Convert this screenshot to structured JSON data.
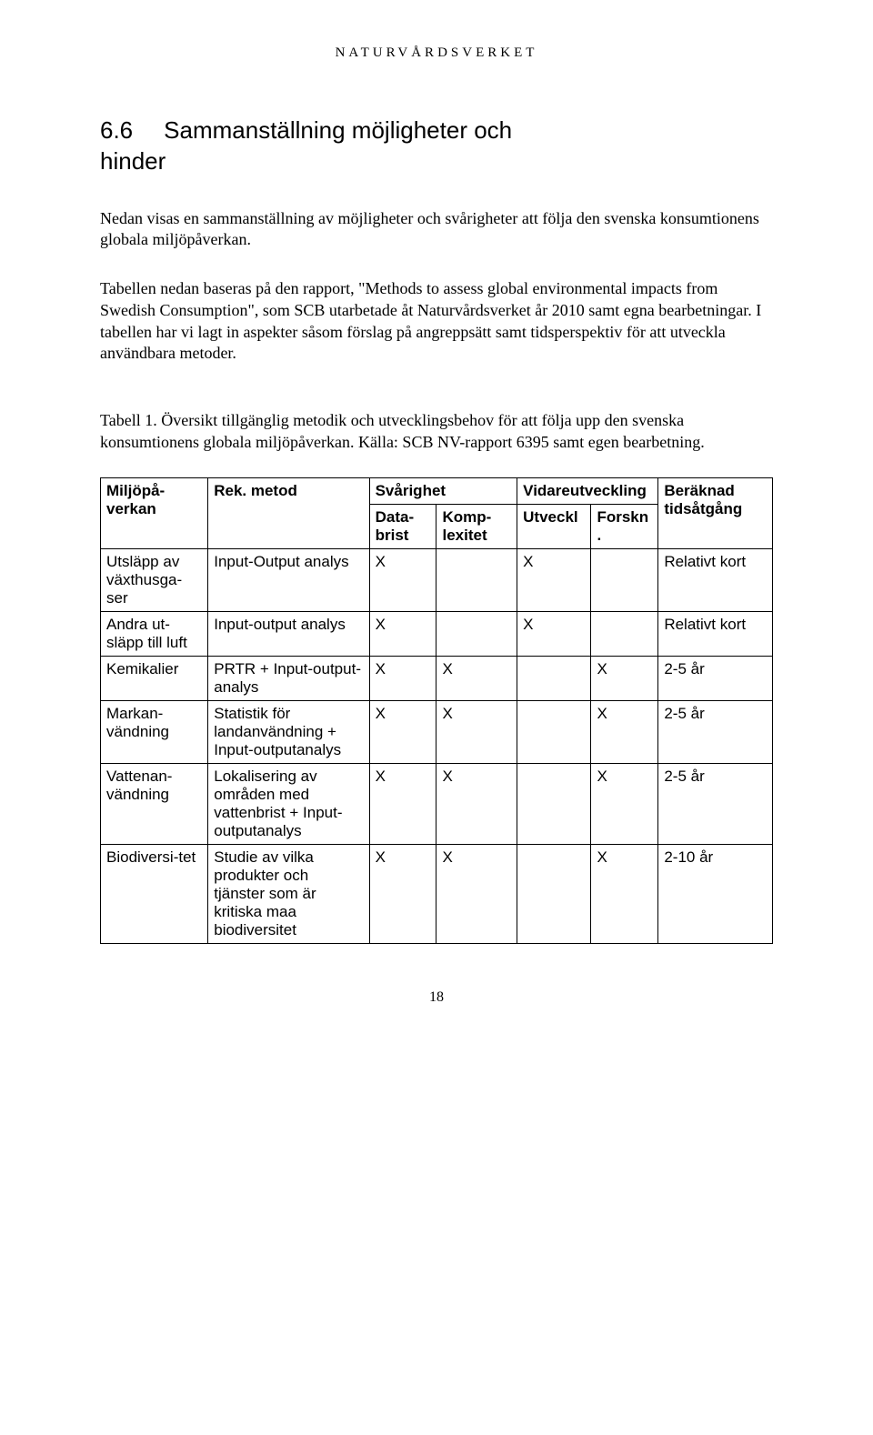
{
  "running_head": "NATURVÅRDSVERKET",
  "heading": {
    "number": "6.6",
    "title_line1": "Sammanställning möjligheter och",
    "title_line2": "hinder"
  },
  "para1": "Nedan visas en sammanställning av möjligheter och svårigheter att följa den svenska konsumtionens globala miljöpåverkan.",
  "para2": "Tabellen nedan baseras på den rapport, \"Methods to assess global environmental impacts from Swedish Consumption\", som SCB utarbetade åt Naturvårdsverket år 2010 samt egna bearbetningar. I tabellen har vi lagt in aspekter såsom förslag på angreppsätt samt tidsperspektiv för att utveckla användbara metoder.",
  "caption": "Tabell 1. Översikt tillgänglig metodik och utvecklingsbehov för att följa upp den svenska konsumtionens globala miljöpåverkan. Källa: SCB NV-rapport 6395 samt egen bearbetning.",
  "table": {
    "header_row1": [
      "Miljöpå-verkan",
      "Rek. metod",
      "Svårighet",
      "Vidareutveckling",
      "Beräknad tidsåtgång"
    ],
    "header_row2": [
      "Data-brist",
      "Komp-lexitet",
      "Utveckl",
      "Forskn."
    ],
    "rows": [
      {
        "impact": "Utsläpp av växthusga-ser",
        "method": "Input-Output analys",
        "databrist": "X",
        "komplex": "",
        "utveckl": "X",
        "forskn": "",
        "tid": "Relativt kort"
      },
      {
        "impact": "Andra ut-släpp till luft",
        "method": "Input-output analys",
        "databrist": "X",
        "komplex": "",
        "utveckl": "X",
        "forskn": "",
        "tid": "Relativt kort"
      },
      {
        "impact": "Kemikalier",
        "method": "PRTR + Input-output-analys",
        "databrist": "X",
        "komplex": "X",
        "utveckl": "",
        "forskn": "X",
        "tid": "2-5 år"
      },
      {
        "impact": "Markan-vändning",
        "method": "Statistik för landanvändning + Input-outputanalys",
        "databrist": "X",
        "komplex": "X",
        "utveckl": "",
        "forskn": "X",
        "tid": "2-5 år"
      },
      {
        "impact": "Vattenan-vändning",
        "method": "Lokalisering av områden med vattenbrist + Input-outputanalys",
        "databrist": "X",
        "komplex": "X",
        "utveckl": "",
        "forskn": "X",
        "tid": "2-5 år"
      },
      {
        "impact": "Biodiversi-tet",
        "method": "Studie av vilka produkter och tjänster som är kritiska maa biodiversitet",
        "databrist": "X",
        "komplex": "X",
        "utveckl": "",
        "forskn": "X",
        "tid": "2-10 år"
      }
    ]
  },
  "page_number": "18",
  "colors": {
    "text": "#000000",
    "background": "#ffffff",
    "border": "#000000"
  }
}
